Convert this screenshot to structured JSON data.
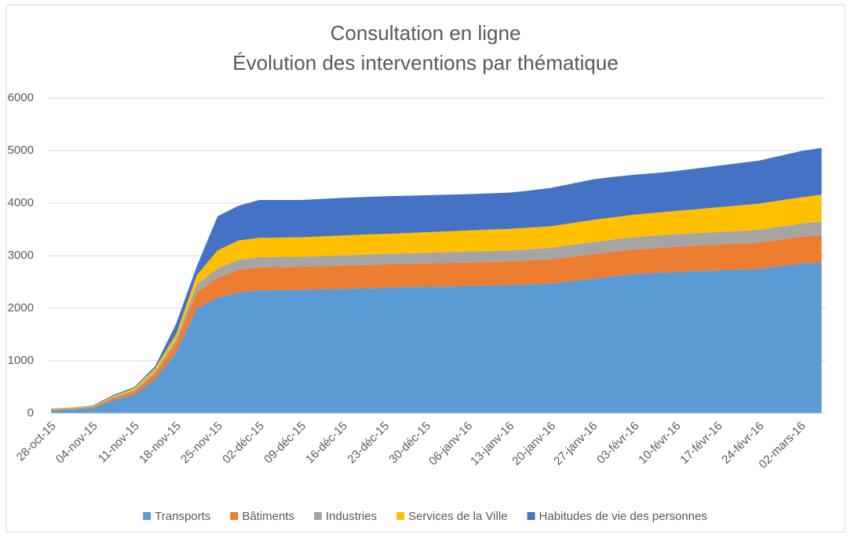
{
  "chart_data": {
    "type": "stacked_area",
    "title": "Consultation en ligne",
    "subtitle": "Évolution des interventions par thématique",
    "categories": [
      "28-oct-15",
      null,
      "04-nov-15",
      null,
      "11-nov-15",
      null,
      "18-nov-15",
      null,
      "25-nov-15",
      null,
      "02-déc-15",
      null,
      "09-déc-15",
      null,
      "16-déc-15",
      null,
      "23-déc-15",
      null,
      "30-déc-15",
      null,
      "06-janv-16",
      null,
      "13-janv-16",
      null,
      "20-janv-16",
      null,
      "27-janv-16",
      null,
      "03-févr-16",
      null,
      "10-févr-16",
      null,
      "17-févr-16",
      null,
      "24-févr-16",
      null,
      "02-mars-16",
      null
    ],
    "series": [
      {
        "name": "Transports",
        "color": "#5b9bd5",
        "values": [
          50,
          70,
          100,
          250,
          350,
          650,
          1150,
          2000,
          2200,
          2300,
          2340,
          2345,
          2350,
          2360,
          2370,
          2380,
          2390,
          2400,
          2410,
          2415,
          2420,
          2430,
          2440,
          2455,
          2470,
          2515,
          2560,
          2605,
          2650,
          2670,
          2690,
          2705,
          2720,
          2735,
          2750,
          2800,
          2850,
          2870
        ]
      },
      {
        "name": "Bâtiments",
        "color": "#ed7d31",
        "values": [
          15,
          18,
          20,
          40,
          60,
          100,
          170,
          300,
          380,
          430,
          440,
          440,
          440,
          440,
          440,
          443,
          445,
          445,
          445,
          448,
          450,
          450,
          450,
          455,
          460,
          465,
          470,
          470,
          470,
          475,
          480,
          485,
          490,
          495,
          500,
          505,
          510,
          520
        ]
      },
      {
        "name": "Industries",
        "color": "#a5a5a5",
        "values": [
          5,
          8,
          10,
          20,
          30,
          50,
          80,
          150,
          180,
          190,
          190,
          190,
          190,
          192,
          195,
          198,
          200,
          200,
          200,
          205,
          210,
          210,
          210,
          215,
          220,
          225,
          230,
          230,
          230,
          235,
          240,
          240,
          240,
          240,
          240,
          245,
          250,
          260
        ]
      },
      {
        "name": "Services de la Ville",
        "color": "#ffc000",
        "values": [
          10,
          10,
          10,
          20,
          40,
          60,
          100,
          180,
          340,
          370,
          370,
          370,
          370,
          375,
          380,
          380,
          380,
          385,
          390,
          395,
          400,
          405,
          410,
          410,
          410,
          415,
          420,
          425,
          430,
          435,
          440,
          455,
          470,
          485,
          500,
          500,
          500,
          510
        ]
      },
      {
        "name": "Habitudes de vie des personnes",
        "color": "#4472c4",
        "values": [
          10,
          4,
          10,
          20,
          20,
          40,
          200,
          170,
          650,
          660,
          720,
          715,
          710,
          713,
          715,
          714,
          715,
          710,
          705,
          697,
          690,
          690,
          690,
          705,
          730,
          750,
          770,
          770,
          760,
          755,
          760,
          775,
          790,
          805,
          820,
          850,
          880,
          890
        ]
      }
    ],
    "ylim": [
      0,
      6000
    ],
    "yticks": [
      0,
      1000,
      2000,
      3000,
      4000,
      5000,
      6000
    ],
    "grid": true,
    "legend": "bottom"
  }
}
